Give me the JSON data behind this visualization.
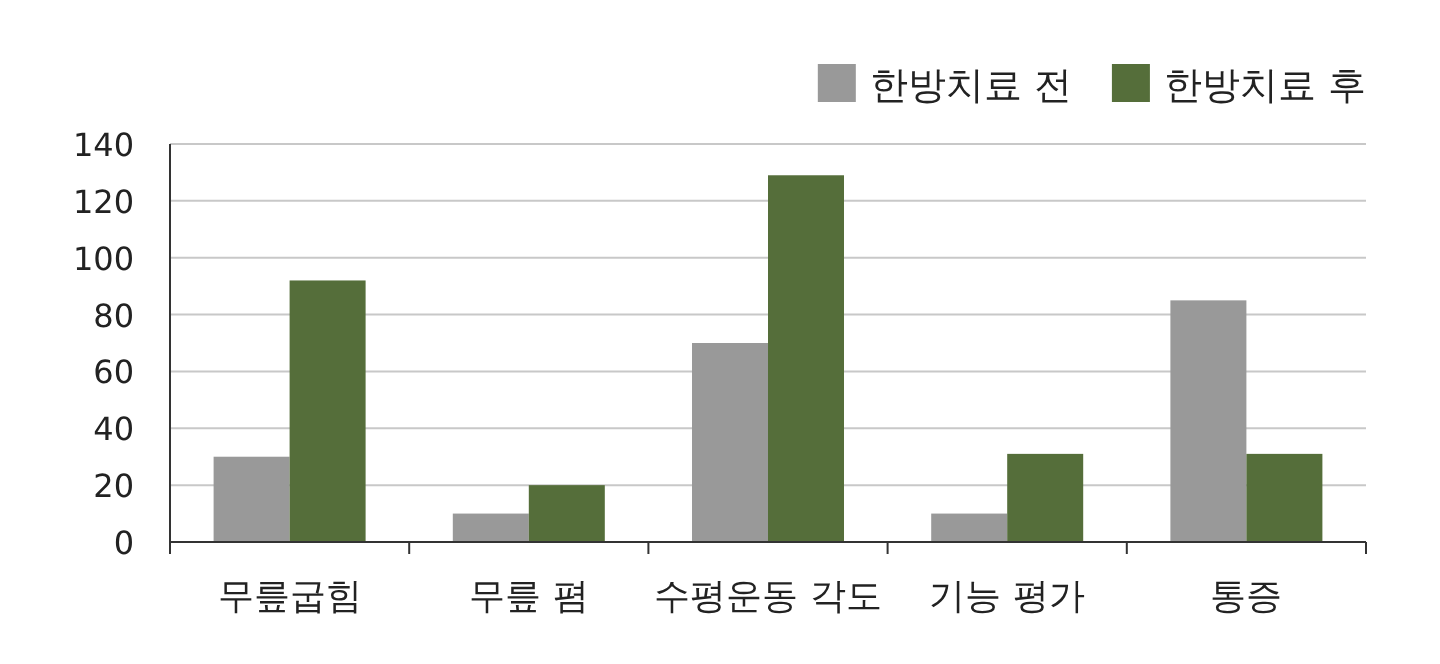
{
  "chart_data": {
    "type": "bar",
    "categories": [
      "무릎굽힘",
      "무릎 폄",
      "수평운동 각도",
      "기능 평가",
      "통증"
    ],
    "series": [
      {
        "name": "한방치료 전",
        "color": "#999999",
        "values": [
          30,
          10,
          70,
          10,
          85
        ]
      },
      {
        "name": "한방치료 후",
        "color": "#556e3a",
        "values": [
          92,
          20,
          129,
          31,
          31
        ]
      }
    ],
    "ylim": [
      0,
      140
    ],
    "yticks": [
      0,
      20,
      40,
      60,
      80,
      100,
      120,
      140
    ],
    "grid": "y",
    "legend": "top right"
  }
}
